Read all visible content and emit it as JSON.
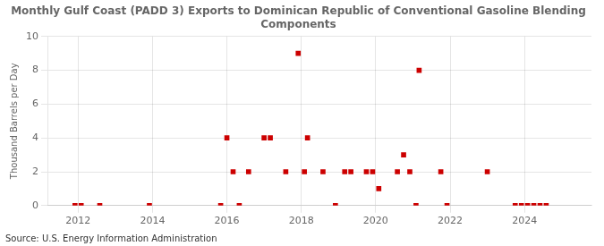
{
  "chart_data": {
    "type": "scatter",
    "title": "Monthly Gulf Coast (PADD 3) Exports to Dominican Republic of Conventional Gasoline Blending\nComponents",
    "ylabel": "Thousand Barrels per Day",
    "source": "Source: U.S. Energy Information Administration",
    "color": "#cc0000",
    "marker": "square",
    "grid": true,
    "xlim": [
      2011.2,
      2025.8
    ],
    "ylim": [
      0,
      10
    ],
    "xticks": [
      2012,
      2014,
      2016,
      2018,
      2020,
      2022,
      2024
    ],
    "yticks": [
      0,
      2,
      4,
      6,
      8,
      10
    ],
    "x": [
      2011.917,
      2012.083,
      2012.583,
      2013.917,
      2015.833,
      2016.0,
      2016.167,
      2016.333,
      2016.583,
      2017.0,
      2017.167,
      2017.583,
      2017.917,
      2018.083,
      2018.167,
      2018.583,
      2018.917,
      2019.167,
      2019.333,
      2019.75,
      2019.917,
      2020.083,
      2020.583,
      2020.75,
      2020.917,
      2021.083,
      2021.167,
      2021.75,
      2021.917,
      2023.0,
      2023.75,
      2023.917,
      2024.083,
      2024.25,
      2024.417,
      2024.583
    ],
    "values": [
      0,
      0,
      0,
      0,
      0,
      4,
      2,
      0,
      2,
      4,
      4,
      2,
      9,
      2,
      4,
      2,
      0,
      2,
      2,
      2,
      2,
      1,
      2,
      3,
      2,
      0,
      8,
      2,
      0,
      2,
      0,
      0,
      0,
      0,
      0,
      0
    ]
  }
}
